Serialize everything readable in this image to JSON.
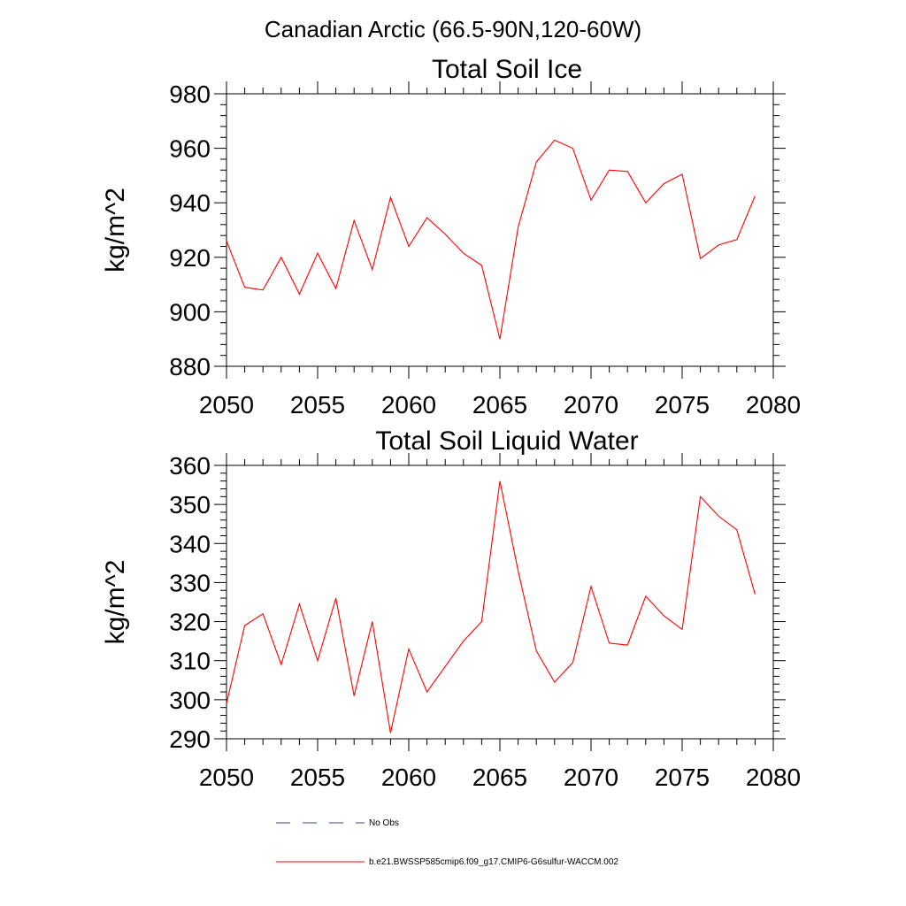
{
  "title": "Canadian Arctic (66.5-90N,120-60W)",
  "legend": {
    "items": [
      {
        "label": "No Obs",
        "color": "#3a4a8a",
        "style": "dashed"
      },
      {
        "label": "b.e21.BWSSP585cmip6.f09_g17.CMIP6-G6sulfur-WACCM.002",
        "color": "#ff0000",
        "style": "solid"
      }
    ]
  },
  "chart_data": [
    {
      "type": "line",
      "title": "Total Soil Ice",
      "xlabel": "",
      "ylabel": "kg/m^2",
      "xlim": [
        2050,
        2080
      ],
      "ylim": [
        880,
        980
      ],
      "xticks": [
        2050,
        2055,
        2060,
        2065,
        2070,
        2075,
        2080
      ],
      "yticks": [
        880,
        900,
        920,
        940,
        960,
        980
      ],
      "grid": false,
      "series": [
        {
          "name": "b.e21.BWSSP585cmip6.f09_g17.CMIP6-G6sulfur-WACCM.002",
          "color": "#ff0000",
          "x": [
            2050,
            2051,
            2052,
            2053,
            2054,
            2055,
            2056,
            2057,
            2058,
            2059,
            2060,
            2061,
            2062,
            2063,
            2064,
            2065,
            2066,
            2067,
            2068,
            2069,
            2070,
            2071,
            2072,
            2073,
            2074,
            2075,
            2076,
            2077,
            2078,
            2079
          ],
          "y": [
            926,
            909,
            908,
            920,
            906.5,
            921.5,
            908.5,
            933.5,
            915.5,
            942,
            924,
            934.5,
            928.5,
            921.5,
            917,
            890,
            931,
            955,
            963,
            960,
            941,
            952,
            951.5,
            940,
            947,
            950.5,
            919.5,
            924.5,
            926.5,
            942.5
          ]
        }
      ]
    },
    {
      "type": "line",
      "title": "Total Soil Liquid Water",
      "xlabel": "",
      "ylabel": "kg/m^2",
      "xlim": [
        2050,
        2080
      ],
      "ylim": [
        290,
        360
      ],
      "xticks": [
        2050,
        2055,
        2060,
        2065,
        2070,
        2075,
        2080
      ],
      "yticks": [
        290,
        300,
        310,
        320,
        330,
        340,
        350,
        360
      ],
      "grid": false,
      "series": [
        {
          "name": "b.e21.BWSSP585cmip6.f09_g17.CMIP6-G6sulfur-WACCM.002",
          "color": "#ff0000",
          "x": [
            2050,
            2051,
            2052,
            2053,
            2054,
            2055,
            2056,
            2057,
            2058,
            2059,
            2060,
            2061,
            2062,
            2063,
            2064,
            2065,
            2066,
            2067,
            2068,
            2069,
            2070,
            2071,
            2072,
            2073,
            2074,
            2075,
            2076,
            2077,
            2078,
            2079
          ],
          "y": [
            299,
            319,
            322,
            309,
            324.5,
            310,
            326,
            301,
            320,
            291.5,
            313,
            302,
            308.5,
            315,
            320,
            356,
            333,
            312.5,
            304.5,
            309.5,
            329,
            314.5,
            314,
            326.5,
            321.5,
            318,
            352,
            347,
            343.5,
            327
          ]
        }
      ]
    }
  ]
}
